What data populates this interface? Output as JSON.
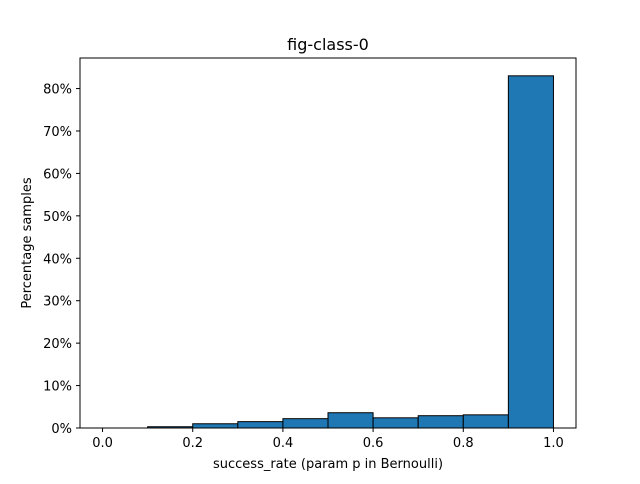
{
  "chart_data": {
    "type": "bar",
    "title": "fig-class-0",
    "xlabel": "success_rate (param p in Bernoulli)",
    "ylabel": "Percentage samples",
    "bins": [
      {
        "start": 0.0,
        "end": 0.1,
        "value": 0.0
      },
      {
        "start": 0.1,
        "end": 0.2,
        "value": 0.3
      },
      {
        "start": 0.2,
        "end": 0.3,
        "value": 1.0
      },
      {
        "start": 0.3,
        "end": 0.4,
        "value": 1.5
      },
      {
        "start": 0.4,
        "end": 0.5,
        "value": 2.2
      },
      {
        "start": 0.5,
        "end": 0.6,
        "value": 3.6
      },
      {
        "start": 0.6,
        "end": 0.7,
        "value": 2.4
      },
      {
        "start": 0.7,
        "end": 0.8,
        "value": 2.9
      },
      {
        "start": 0.8,
        "end": 0.9,
        "value": 3.1
      },
      {
        "start": 0.9,
        "end": 1.0,
        "value": 83.0
      }
    ],
    "xlim": [
      -0.05,
      1.05
    ],
    "ylim": [
      0,
      87.2
    ],
    "xticks": [
      {
        "value": 0.0,
        "label": "0.0"
      },
      {
        "value": 0.2,
        "label": "0.2"
      },
      {
        "value": 0.4,
        "label": "0.4"
      },
      {
        "value": 0.6,
        "label": "0.6"
      },
      {
        "value": 0.8,
        "label": "0.8"
      },
      {
        "value": 1.0,
        "label": "1.0"
      }
    ],
    "yticks": [
      {
        "value": 0,
        "label": "0%"
      },
      {
        "value": 10,
        "label": "10%"
      },
      {
        "value": 20,
        "label": "20%"
      },
      {
        "value": 30,
        "label": "30%"
      },
      {
        "value": 40,
        "label": "40%"
      },
      {
        "value": 50,
        "label": "50%"
      },
      {
        "value": 60,
        "label": "60%"
      },
      {
        "value": 70,
        "label": "70%"
      },
      {
        "value": 80,
        "label": "80%"
      }
    ],
    "bar_color": "#1f77b4",
    "edge_color": "#000000",
    "grid": false,
    "legend": "none"
  }
}
